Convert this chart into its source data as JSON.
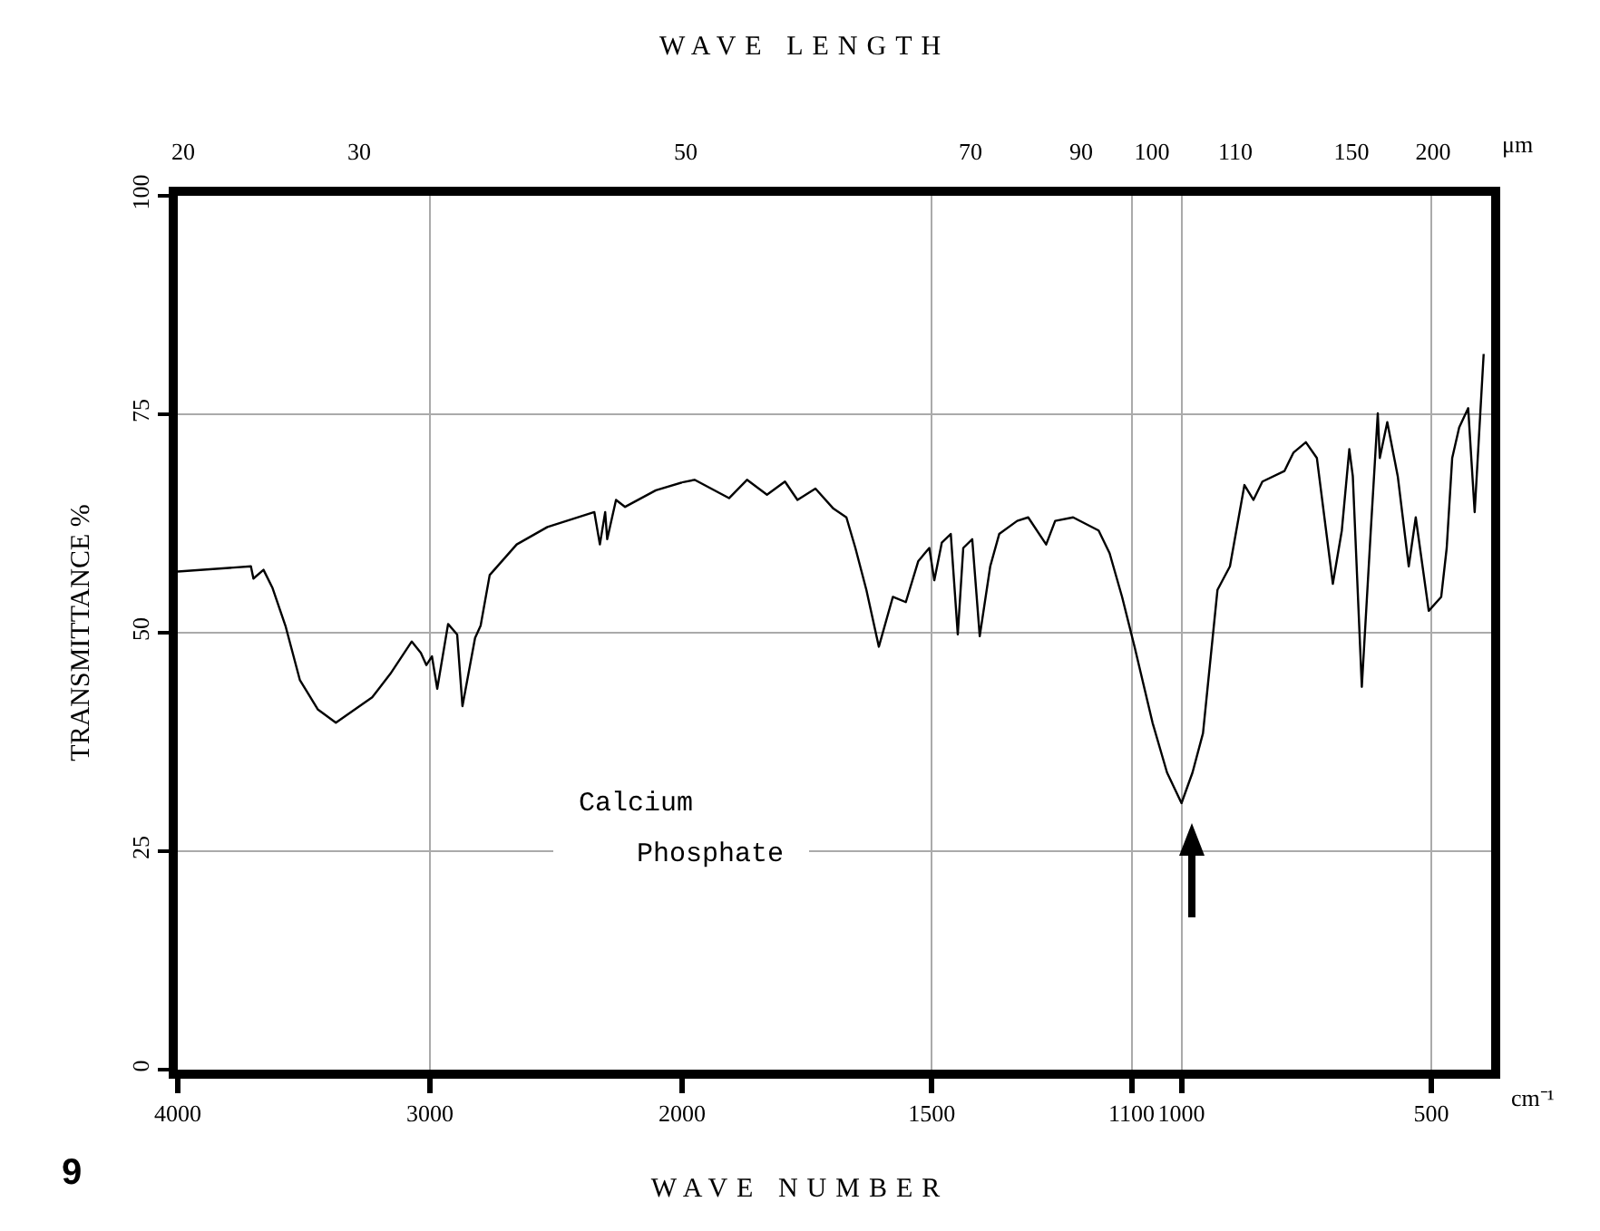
{
  "chart_data": [
    {
      "type": "line",
      "xlabel": "WAVE NUMBER",
      "ylabel": "TRANSMITTANCE %",
      "annotations": [
        "WAVE LENGTH",
        "20",
        "30",
        "50",
        "μm",
        "cm⁻¹",
        "9"
      ],
      "x": [
        4000,
        3710,
        3700,
        3660,
        3624,
        3573,
        3516,
        3444,
        3373,
        3229,
        3157,
        3072,
        3036,
        3014,
        2992,
        2971,
        2928,
        2892,
        2871,
        2821,
        2799,
        2763,
        2656,
        2534,
        2348,
        2326,
        2305,
        2297,
        2262,
        2226,
        2104,
        2000
      ],
      "series": [
        {
          "color": "#000000",
          "values": [
            57.0,
            57.6,
            56.2,
            57.2,
            55.1,
            50.8,
            44.6,
            41.2,
            39.7,
            42.6,
            45.3,
            49.0,
            47.7,
            46.3,
            47.3,
            43.6,
            51.0,
            49.8,
            41.6,
            49.4,
            50.8,
            56.6,
            60.1,
            62.1,
            63.8,
            60.1,
            63.8,
            60.7,
            65.2,
            64.4,
            66.3,
            67.2
          ]
        }
      ],
      "xlim": [
        4000,
        2000
      ],
      "xticks": [
        4000,
        3000,
        2000
      ],
      "ylim": [
        0,
        100
      ],
      "yticks": [
        0,
        25,
        50,
        75,
        100
      ],
      "grid": true
    },
    {
      "type": "line",
      "annotations": [
        "Calcium Phosphate",
        "70",
        "90",
        "100",
        "110",
        "150",
        "200"
      ],
      "x": [
        2000,
        1975,
        1906,
        1870,
        1830,
        1794,
        1769,
        1733,
        1697,
        1671,
        1653,
        1631,
        1606,
        1578,
        1552,
        1527,
        1505,
        1495,
        1480,
        1462,
        1448,
        1437,
        1419,
        1404,
        1383,
        1365,
        1329,
        1307,
        1271,
        1253,
        1217,
        1166,
        1144,
        1119,
        1094,
        1058,
        1029,
        1000,
        978,
        957,
        928,
        903,
        874,
        856,
        838,
        794,
        776,
        751,
        729,
        697,
        679,
        664,
        657,
        639,
        621,
        607,
        603,
        588,
        567,
        545,
        531,
        505,
        480,
        469,
        458,
        444,
        426,
        413,
        395
      ],
      "series": [
        {
          "color": "#000000",
          "values": [
            67.2,
            67.5,
            65.4,
            67.5,
            65.8,
            67.3,
            65.2,
            66.5,
            64.2,
            63.2,
            59.7,
            54.9,
            48.4,
            54.1,
            53.5,
            58.2,
            59.7,
            56.0,
            60.3,
            61.3,
            49.8,
            59.7,
            60.7,
            49.6,
            57.6,
            61.3,
            62.8,
            63.2,
            60.1,
            62.8,
            63.2,
            61.7,
            59.1,
            54.1,
            48.4,
            39.7,
            34.0,
            30.5,
            34.0,
            38.5,
            54.9,
            57.6,
            66.9,
            65.2,
            67.3,
            68.5,
            70.6,
            71.8,
            70.0,
            55.6,
            61.7,
            71.0,
            67.9,
            43.8,
            61.7,
            75.1,
            70.0,
            74.1,
            67.9,
            57.6,
            63.2,
            52.5,
            54.1,
            59.7,
            70.0,
            73.5,
            75.7,
            63.8,
            81.9
          ]
        }
      ],
      "xlim": [
        2000,
        380
      ],
      "xticks": [
        1500,
        1100,
        1000,
        500
      ],
      "ylim": [
        0,
        100
      ],
      "yticks": [
        0,
        25,
        50,
        75,
        100
      ],
      "tick_labels": "x",
      "grid": true
    }
  ]
}
